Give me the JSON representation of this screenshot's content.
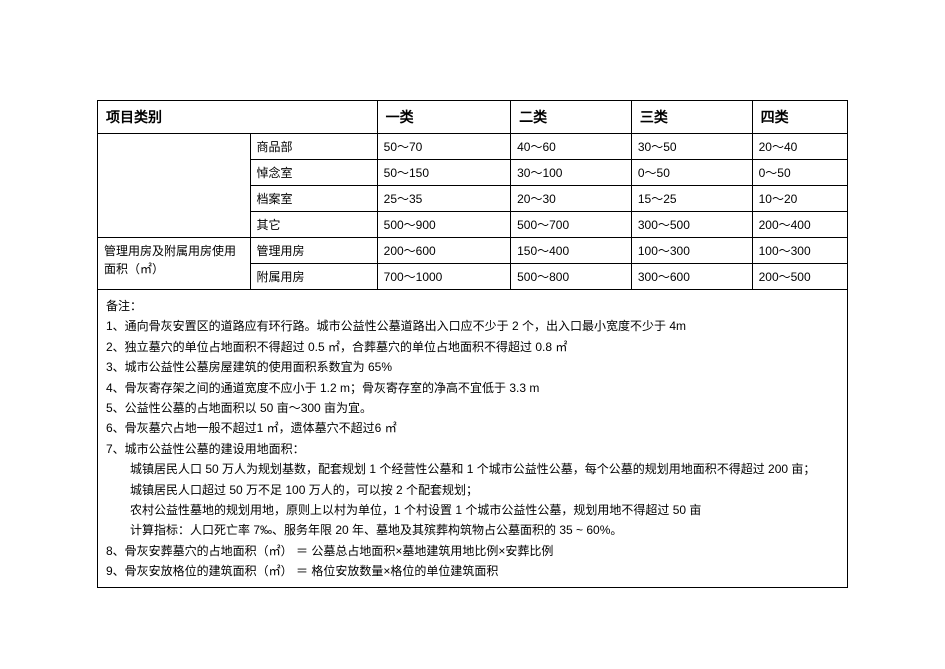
{
  "table": {
    "headers": {
      "category": "项目类别",
      "c1": "一类",
      "c2": "二类",
      "c3": "三类",
      "c4": "四类"
    },
    "group1_sub": [
      "商品部",
      "悼念室",
      "档案室",
      "其它"
    ],
    "group1_vals": [
      [
        "50～70",
        "40～60",
        "30～50",
        "20～40"
      ],
      [
        "50～150",
        "30～100",
        "0～50",
        "0～50"
      ],
      [
        "25～35",
        "20～30",
        "15～25",
        "10～20"
      ],
      [
        "500～900",
        "500～700",
        "300～500",
        "200～400"
      ]
    ],
    "group2_label": "管理用房及附属用房使用面积（㎡）",
    "group2_sub": [
      "管理用房",
      "附属用房"
    ],
    "group2_vals": [
      [
        "200～600",
        "150～400",
        "100～300",
        "100～300"
      ],
      [
        "700～1000",
        "500～800",
        "300～600",
        "200～500"
      ]
    ]
  },
  "notes": {
    "title": "备注：",
    "l1": "1、通向骨灰安置区的道路应有环行路。城市公益性公墓道路出入口应不少于 2 个，出入口最小宽度不少于 4m",
    "l2": "2、独立墓穴的单位占地面积不得超过 0.5 ㎡，合葬墓穴的单位占地面积不得超过 0.8 ㎡",
    "l3": "3、城市公益性公墓房屋建筑的使用面积系数宜为 65%",
    "l4": "4、骨灰寄存架之间的通道宽度不应小于 1.2 m；骨灰寄存室的净高不宜低于 3.3 m",
    "l5": "5、公益性公墓的占地面积以 50 亩～300 亩为宜。",
    "l6": "6、骨灰墓穴占地一般不超过1 ㎡，遗体墓穴不超过6 ㎡",
    "l7": "7、城市公益性公墓的建设用地面积：",
    "l7a": "城镇居民人口 50 万人为规划基数，配套规划 1 个经营性公墓和 1 个城市公益性公墓，每个公墓的规划用地面积不得超过 200 亩；",
    "l7b": "城镇居民人口超过 50 万不足 100 万人的，可以按 2 个配套规划；",
    "l7c": "农村公益性墓地的规划用地，原则上以村为单位，1 个村设置 1 个城市公益性公墓，规划用地不得超过 50 亩",
    "l7d": "计算指标：人口死亡率 7‰、服务年限 20 年、墓地及其殡葬构筑物占公墓面积的 35 ~ 60%。",
    "l8": "8、骨灰安葬墓穴的占地面积（㎡） ＝ 公墓总占地面积×墓地建筑用地比例×安葬比例",
    "l9": "9、骨灰安放格位的建筑面积（㎡） ＝ 格位安放数量×格位的单位建筑面积"
  }
}
